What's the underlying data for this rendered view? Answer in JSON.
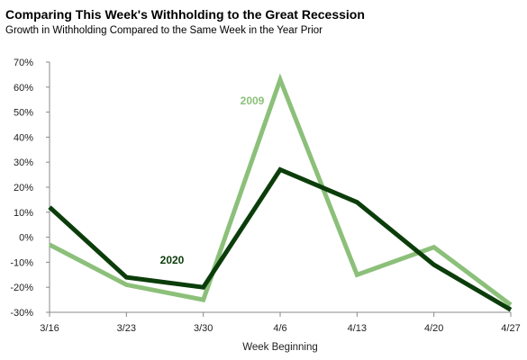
{
  "chart_data": {
    "type": "line",
    "title": "Comparing This Week's Withholding to the Great Recession",
    "subtitle": "Growth in Withholding Compared to the Same Week in the Year Prior",
    "xlabel": "Week Beginning",
    "ylabel": "",
    "categories": [
      "3/16",
      "3/23",
      "3/30",
      "4/6",
      "4/13",
      "4/20",
      "4/27"
    ],
    "ylim": [
      -0.3,
      0.7
    ],
    "yticks": [
      -0.3,
      -0.2,
      -0.1,
      0,
      0.1,
      0.2,
      0.3,
      0.4,
      0.5,
      0.6,
      0.7
    ],
    "ytick_labels": [
      "-30%",
      "-20%",
      "-10%",
      "0%",
      "10%",
      "20%",
      "30%",
      "40%",
      "50%",
      "60%",
      "70%"
    ],
    "grid": false,
    "series": [
      {
        "name": "2009",
        "color": "#8cc07a",
        "values": [
          -0.03,
          -0.19,
          -0.25,
          0.63,
          -0.15,
          -0.04,
          -0.27
        ]
      },
      {
        "name": "2020",
        "color": "#0b3d0b",
        "values": [
          0.12,
          -0.16,
          -0.2,
          0.27,
          0.14,
          -0.11,
          -0.29
        ]
      }
    ]
  }
}
